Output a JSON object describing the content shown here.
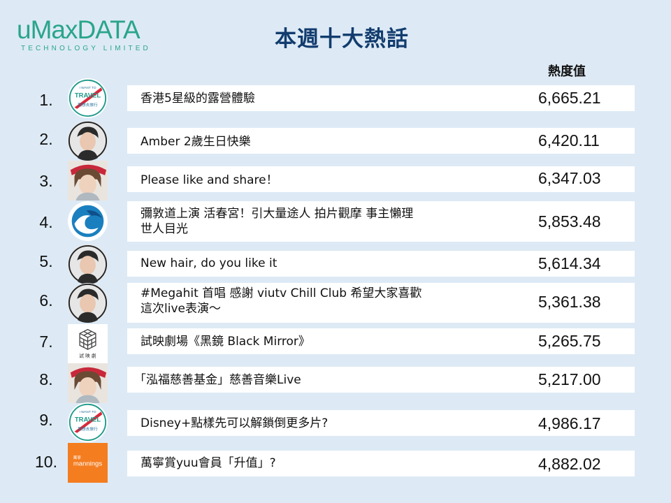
{
  "brand": {
    "name_u": "u",
    "name_rest": "MaxDATA",
    "tagline": "TECHNOLOGY LIMITED",
    "color": "#2aa58a"
  },
  "title": "本週十大熱話",
  "value_header": "熱度值",
  "colors": {
    "background": "#ddeaf5",
    "title": "#123c6e",
    "bar": "#ffffff"
  },
  "items": [
    {
      "rank": "1.",
      "topic_line1": "香港5星級的露營體驗",
      "topic_line2": "",
      "value": "6,665.21",
      "avatar": "travel-logo-icon",
      "avatar_text_top": "I WANT TO",
      "avatar_text_main": "TRAVEL",
      "avatar_text_bottom": "我想去旅行"
    },
    {
      "rank": "2.",
      "topic_line1": "Amber 2歲生日快樂",
      "topic_line2": "",
      "value": "6,420.11",
      "avatar": "singer-portrait-icon"
    },
    {
      "rank": "3.",
      "topic_line1": "Please like and share！",
      "topic_line2": "",
      "value": "6,347.03",
      "avatar": "woman-visor-portrait-icon"
    },
    {
      "rank": "4.",
      "topic_line1": "彌敦道上演 活春宮！引大量途人 拍片觀摩 事主懶理",
      "topic_line2": "世人目光",
      "value": "5,853.48",
      "avatar": "wave-logo-icon"
    },
    {
      "rank": "5.",
      "topic_line1": "New hair, do you like it",
      "topic_line2": "",
      "value": "5,614.34",
      "avatar": "singer-portrait-icon"
    },
    {
      "rank": "6.",
      "topic_line1": "#Megahit 首唱 感謝 viutv Chill Club 希望大家喜歡",
      "topic_line2": "這次live表演～",
      "value": "5,361.38",
      "avatar": "singer-portrait-icon"
    },
    {
      "rank": "7.",
      "topic_line1": "試映劇場《黑鏡 Black Mirror》",
      "topic_line2": "",
      "value": "5,265.75",
      "avatar": "cube-logo-icon",
      "avatar_text_main": "試 映 劇"
    },
    {
      "rank": "8.",
      "topic_line1": "「泓福慈善基金」慈善音樂Live",
      "topic_line2": "",
      "value": "5,217.00",
      "avatar": "woman-visor-portrait-icon"
    },
    {
      "rank": "9.",
      "topic_line1": "Disney+點樣先可以解鎖倒更多片?",
      "topic_line2": "",
      "value": "4,986.17",
      "avatar": "travel-logo-icon",
      "avatar_text_top": "I WANT TO",
      "avatar_text_main": "TRAVEL",
      "avatar_text_bottom": "我想去旅行"
    },
    {
      "rank": "10.",
      "topic_line1": "萬寧賞yuu會員「升值」?",
      "topic_line2": "",
      "value": "4,882.02",
      "avatar": "mannings-logo-icon",
      "avatar_text_top": "萬寧",
      "avatar_text_main": "mannings"
    }
  ]
}
